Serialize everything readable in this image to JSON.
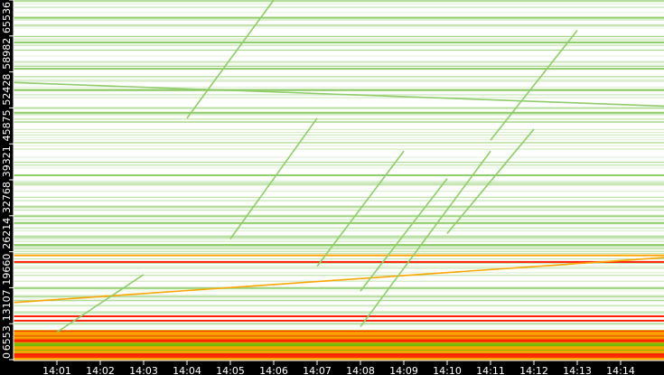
{
  "chart_data": {
    "type": "scatter",
    "title": "",
    "xlabel": "",
    "ylabel": "",
    "x_ticks": [
      "14:01",
      "14:02",
      "14:03",
      "14:04",
      "14:05",
      "14:06",
      "14:07",
      "14:08",
      "14:09",
      "14:10",
      "14:11",
      "14:12",
      "14:13",
      "14:14"
    ],
    "y_ticks": [
      "0",
      "6553",
      "13107",
      "19660",
      "26214",
      "32768",
      "39321",
      "45875",
      "52428",
      "58982",
      "65536"
    ],
    "xlim_minutes_after_14_00": [
      0,
      15
    ],
    "ylim": [
      0,
      65536
    ],
    "background": "#ffffff",
    "colors": {
      "sparse": "#8fcc6a",
      "medium": "#7ab800",
      "dense": "#ffa500",
      "peak": "#ff2000"
    },
    "horizontal_bands": [
      {
        "port": 17800,
        "color": "#ff2000"
      },
      {
        "port": 19000,
        "color": "#ffa500"
      },
      {
        "port": 7900,
        "color": "#ff2000"
      },
      {
        "port": 7100,
        "color": "#ff2000"
      },
      {
        "port": 20900,
        "color": "#8fcc6a"
      },
      {
        "port": 24900,
        "color": "#8fcc6a"
      },
      {
        "port": 33600,
        "color": "#8fcc6a"
      },
      {
        "port": 45000,
        "color": "#8fcc6a"
      },
      {
        "port": 49100,
        "color": "#8fcc6a"
      },
      {
        "port": 53000,
        "color": "#8fcc6a"
      },
      {
        "port": 57800,
        "color": "#8fcc6a"
      },
      {
        "port": 62300,
        "color": "#8fcc6a"
      }
    ],
    "dense_region": {
      "port_from": 0,
      "port_to": 5400,
      "color": "#ffa500"
    },
    "trends": [
      {
        "from": [
          "14:00",
          10400
        ],
        "to": [
          "14:15",
          18600
        ],
        "color": "#ffa500"
      },
      {
        "from": [
          "14:00",
          50500
        ],
        "to": [
          "14:15",
          46200
        ],
        "color": "#8fcc6a"
      },
      {
        "from": [
          "14:01",
          5000
        ],
        "to": [
          "14:03",
          15500
        ],
        "color": "#8fcc6a"
      },
      {
        "from": [
          "14:04",
          44000
        ],
        "to": [
          "14:06",
          65536
        ],
        "color": "#8fcc6a"
      },
      {
        "from": [
          "14:05",
          22000
        ],
        "to": [
          "14:07",
          44000
        ],
        "color": "#8fcc6a"
      },
      {
        "from": [
          "14:07",
          17000
        ],
        "to": [
          "14:09",
          38000
        ],
        "color": "#8fcc6a"
      },
      {
        "from": [
          "14:08",
          12500
        ],
        "to": [
          "14:10",
          33000
        ],
        "color": "#8fcc6a"
      },
      {
        "from": [
          "14:08",
          6000
        ],
        "to": [
          "14:11",
          38000
        ],
        "color": "#8fcc6a"
      },
      {
        "from": [
          "14:10",
          23000
        ],
        "to": [
          "14:12",
          42000
        ],
        "color": "#8fcc6a"
      },
      {
        "from": [
          "14:11",
          40000
        ],
        "to": [
          "14:13",
          60000
        ],
        "color": "#8fcc6a"
      }
    ]
  }
}
